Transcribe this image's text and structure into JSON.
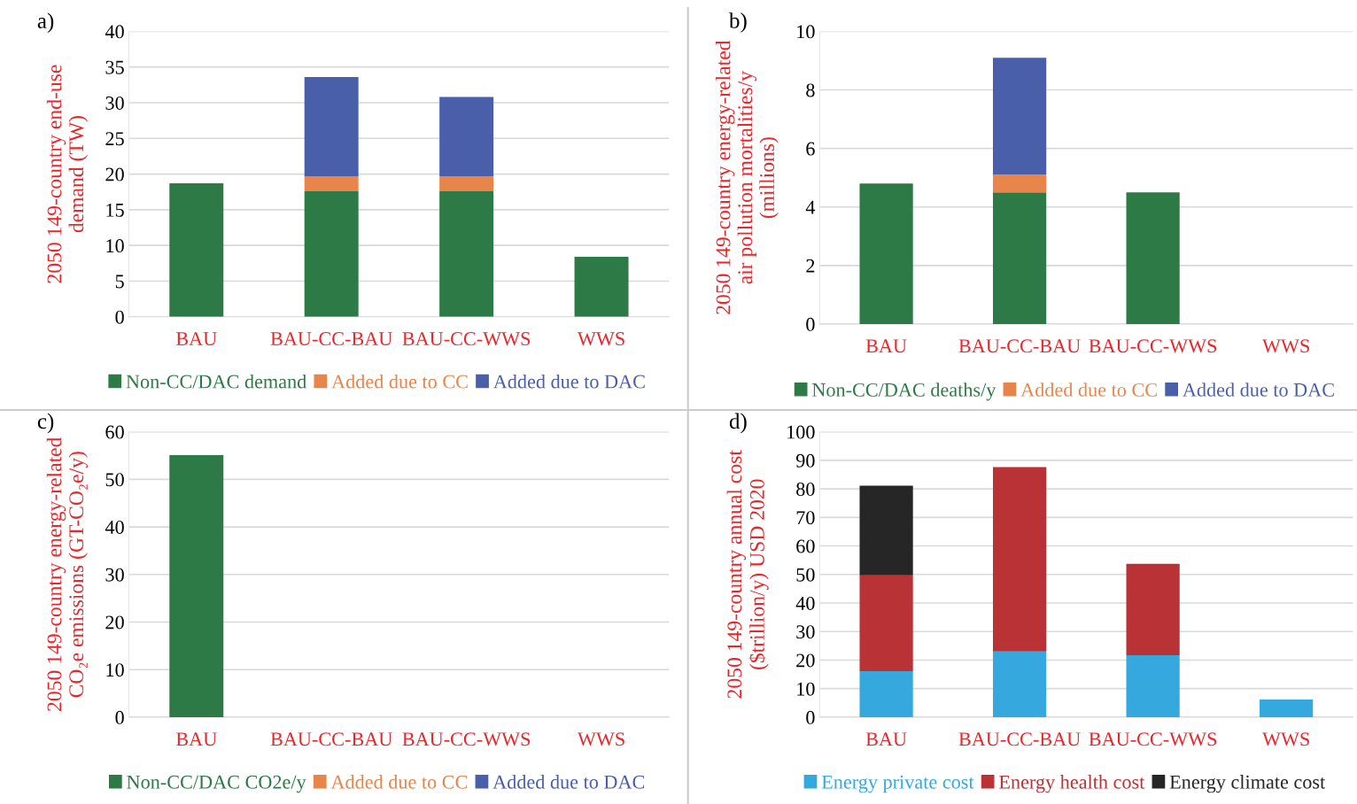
{
  "chart_data": [
    {
      "type": "bar",
      "title": "a)",
      "stacked": true,
      "ylabel": "2050 149-country end-use\ndemand (TW)",
      "categories": [
        "BAU",
        "BAU-CC-BAU",
        "BAU-CC-WWS",
        "WWS"
      ],
      "ylim": [
        0,
        40
      ],
      "yticks": [
        0,
        5,
        10,
        15,
        20,
        25,
        30,
        35,
        40
      ],
      "grid": "y",
      "legend": "bottom",
      "series": [
        {
          "name": "Non-CC/DAC demand",
          "color": "#2e7a47",
          "values": [
            18.7,
            17.6,
            17.6,
            8.4
          ]
        },
        {
          "name": "Added due to CC",
          "color": "#e8854a",
          "values": [
            null,
            2.1,
            2.1,
            null
          ]
        },
        {
          "name": "Added due to DAC",
          "color": "#4a5faa",
          "values": [
            null,
            13.9,
            11.1,
            null
          ]
        }
      ]
    },
    {
      "type": "bar",
      "title": "b)",
      "stacked": true,
      "ylabel": "2050 149-country energy-related\nair pollution mortalities/y\n(millions)",
      "categories": [
        "BAU",
        "BAU-CC-BAU",
        "BAU-CC-WWS",
        "WWS"
      ],
      "ylim": [
        0,
        10
      ],
      "yticks": [
        0,
        2,
        4,
        6,
        8,
        10
      ],
      "grid": "y",
      "legend": "bottom",
      "series": [
        {
          "name": "Non-CC/DAC deaths/y",
          "color": "#2e7a47",
          "values": [
            4.8,
            4.5,
            4.5,
            null
          ]
        },
        {
          "name": "Added due to CC",
          "color": "#e8854a",
          "values": [
            null,
            0.6,
            null,
            null
          ]
        },
        {
          "name": "Added due to DAC",
          "color": "#4a5faa",
          "values": [
            null,
            4.0,
            null,
            null
          ]
        }
      ]
    },
    {
      "type": "bar",
      "title": "c)",
      "stacked": true,
      "ylabel": "2050 149-country energy-related\nCO₂e emissions (GT-CO₂e/y)",
      "categories": [
        "BAU",
        "BAU-CC-BAU",
        "BAU-CC-WWS",
        "WWS"
      ],
      "ylim": [
        0,
        60
      ],
      "yticks": [
        0,
        10,
        20,
        30,
        40,
        50,
        60
      ],
      "grid": "y",
      "legend": "bottom",
      "series": [
        {
          "name": "Non-CC/DAC CO2e/y",
          "color": "#2e7a47",
          "values": [
            55.1,
            null,
            null,
            null
          ]
        },
        {
          "name": "Added due to CC",
          "color": "#e8854a",
          "values": [
            null,
            null,
            null,
            null
          ]
        },
        {
          "name": "Added due to DAC",
          "color": "#4a5faa",
          "values": [
            null,
            null,
            null,
            null
          ]
        }
      ]
    },
    {
      "type": "bar",
      "title": "d)",
      "stacked": true,
      "ylabel": "2050 149-country annual cost\n($trillion/y) USD 2020",
      "categories": [
        "BAU",
        "BAU-CC-BAU",
        "BAU-CC-WWS",
        "WWS"
      ],
      "ylim": [
        0,
        100
      ],
      "yticks": [
        0,
        10,
        20,
        30,
        40,
        50,
        60,
        70,
        80,
        90,
        100
      ],
      "grid": "y",
      "legend": "bottom",
      "series": [
        {
          "name": "Energy private cost",
          "color": "#35a9de",
          "values": [
            16.1,
            23.0,
            21.7,
            6.2
          ]
        },
        {
          "name": "Energy health cost",
          "color": "#b83236",
          "values": [
            33.6,
            64.6,
            32.0,
            null
          ]
        },
        {
          "name": "Energy climate cost",
          "color": "#262626",
          "values": [
            31.4,
            null,
            null,
            null
          ]
        }
      ]
    }
  ]
}
